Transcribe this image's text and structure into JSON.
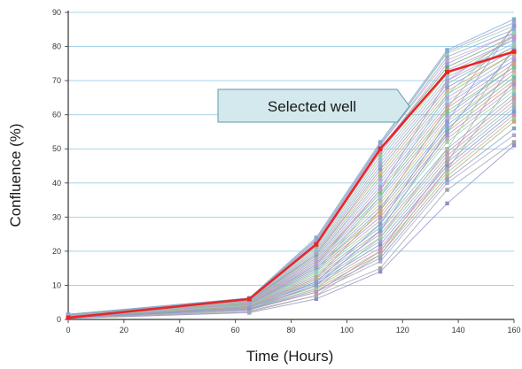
{
  "chart_data": {
    "type": "line",
    "xlabel": "Time (Hours)",
    "ylabel": "Confluence (%)",
    "xlim": [
      0,
      160
    ],
    "ylim": [
      0,
      90
    ],
    "xticks": [
      0,
      20,
      40,
      60,
      80,
      100,
      120,
      140,
      160
    ],
    "yticks": [
      0,
      10,
      20,
      30,
      40,
      50,
      60,
      70,
      80,
      90
    ],
    "x": [
      0,
      65,
      89,
      112,
      136,
      160
    ],
    "grid": "horizontal",
    "highlight_series": {
      "label": "Selected well",
      "color": "#e8262b",
      "values": [
        0.5,
        6,
        22,
        50,
        72.5,
        78.5
      ]
    },
    "series": [
      {
        "color": "#8e8ec8",
        "values": [
          0.3,
          2,
          6,
          14,
          34,
          51
        ]
      },
      {
        "color": "#9aa3a8",
        "values": [
          0.4,
          2.5,
          7,
          15,
          38,
          52
        ]
      },
      {
        "color": "#b3a2c8",
        "values": [
          0.5,
          3,
          8,
          17,
          40,
          54
        ]
      },
      {
        "color": "#7ca6c9",
        "values": [
          0.5,
          3,
          8.5,
          18,
          41,
          56
        ]
      },
      {
        "color": "#c7a37a",
        "values": [
          0.6,
          3.2,
          9,
          19,
          42,
          58
        ]
      },
      {
        "color": "#9bc89b",
        "values": [
          0.6,
          3.5,
          9.5,
          20,
          43,
          59
        ]
      },
      {
        "color": "#d08db3",
        "values": [
          0.7,
          3.6,
          10,
          21,
          44,
          60
        ]
      },
      {
        "color": "#6f9fbf",
        "values": [
          0.7,
          3.8,
          10.5,
          22,
          45,
          61
        ]
      },
      {
        "color": "#a0a0d8",
        "values": [
          0.8,
          4,
          11,
          23,
          46,
          62
        ]
      },
      {
        "color": "#8fbf8f",
        "values": [
          0.8,
          4,
          11.5,
          24,
          47,
          63
        ]
      },
      {
        "color": "#bca0d0",
        "values": [
          0.8,
          4.2,
          12,
          25,
          48,
          64
        ]
      },
      {
        "color": "#c49a9a",
        "values": [
          0.9,
          4.2,
          12.5,
          26,
          49,
          65
        ]
      },
      {
        "color": "#7fb3d5",
        "values": [
          0.9,
          4.3,
          13,
          27,
          50,
          66
        ]
      },
      {
        "color": "#9ed09e",
        "values": [
          0.9,
          4.4,
          13.5,
          28,
          52,
          67
        ]
      },
      {
        "color": "#b0b0b0",
        "values": [
          1,
          4.5,
          14,
          29,
          53,
          68
        ]
      },
      {
        "color": "#a88fc9",
        "values": [
          1,
          4.5,
          14.5,
          30,
          54,
          69
        ]
      },
      {
        "color": "#d4a46a",
        "values": [
          1,
          4.6,
          15,
          31,
          55,
          70
        ]
      },
      {
        "color": "#6fb6b6",
        "values": [
          1,
          4.7,
          15,
          32,
          56,
          71
        ]
      },
      {
        "color": "#9b9bd4",
        "values": [
          1,
          4.8,
          15.5,
          33,
          57,
          72
        ]
      },
      {
        "color": "#b8d08a",
        "values": [
          1,
          4.8,
          16,
          34,
          58,
          72
        ]
      },
      {
        "color": "#c9a3c9",
        "values": [
          1,
          4.9,
          16,
          35,
          59,
          73
        ]
      },
      {
        "color": "#8aa8d8",
        "values": [
          1.1,
          5,
          16.5,
          36,
          60,
          74
        ]
      },
      {
        "color": "#7ec27e",
        "values": [
          1.1,
          5,
          17,
          37,
          61,
          74
        ]
      },
      {
        "color": "#d09a9a",
        "values": [
          1.1,
          5.1,
          17,
          38,
          62,
          75
        ]
      },
      {
        "color": "#a4a4e0",
        "values": [
          1.1,
          5.2,
          17.5,
          39,
          63,
          76
        ]
      },
      {
        "color": "#9fc5d9",
        "values": [
          1.2,
          5.2,
          18,
          40,
          64,
          76
        ]
      },
      {
        "color": "#b9a0e0",
        "values": [
          1.2,
          5.3,
          18,
          41,
          65,
          77
        ]
      },
      {
        "color": "#88c488",
        "values": [
          1.2,
          5.4,
          18.5,
          42,
          66,
          78
        ]
      },
      {
        "color": "#d6b27a",
        "values": [
          1.2,
          5.4,
          19,
          43,
          67,
          78
        ]
      },
      {
        "color": "#9b8fd0",
        "values": [
          1.3,
          5.5,
          19,
          44,
          68,
          79
        ]
      },
      {
        "color": "#7fb7b7",
        "values": [
          1.3,
          5.5,
          19.5,
          45,
          69,
          80
        ]
      },
      {
        "color": "#c0a0c0",
        "values": [
          1.3,
          5.6,
          20,
          46,
          70,
          80
        ]
      },
      {
        "color": "#8cbfe0",
        "values": [
          1.3,
          5.6,
          20.5,
          47,
          71,
          81
        ]
      },
      {
        "color": "#a0c880",
        "values": [
          1.4,
          5.7,
          21,
          48,
          72,
          82
        ]
      },
      {
        "color": "#b49ad8",
        "values": [
          1.4,
          5.8,
          21.5,
          49,
          73,
          82
        ]
      },
      {
        "color": "#6aa86a",
        "values": [
          1.4,
          5.8,
          22,
          50,
          74,
          83
        ]
      },
      {
        "color": "#9c9ce6",
        "values": [
          1.4,
          5.9,
          22.5,
          50,
          75,
          84
        ]
      },
      {
        "color": "#d29fb8",
        "values": [
          1.5,
          6,
          23,
          51,
          76,
          84
        ]
      },
      {
        "color": "#84b0d8",
        "values": [
          1.5,
          6,
          23,
          51,
          77,
          85
        ]
      },
      {
        "color": "#9fd19f",
        "values": [
          1.5,
          6.1,
          23.5,
          51.5,
          78,
          86
        ]
      },
      {
        "color": "#a7a0d0",
        "values": [
          1.5,
          6.2,
          23.5,
          51.5,
          78.5,
          87
        ]
      },
      {
        "color": "#7aaed0",
        "values": [
          1.5,
          6.3,
          24,
          52,
          79,
          88
        ]
      },
      {
        "color": "#c5a57c",
        "values": [
          0.8,
          3.8,
          12,
          32,
          62,
          86
        ]
      },
      {
        "color": "#8fd0c0",
        "values": [
          0.9,
          4.1,
          14,
          36,
          66,
          84
        ]
      },
      {
        "color": "#b59ccc",
        "values": [
          1,
          4.4,
          16,
          38,
          70,
          83
        ]
      },
      {
        "color": "#8a9bd6",
        "values": [
          0.7,
          3.4,
          11,
          28,
          58,
          86
        ]
      },
      {
        "color": "#a1c1a1",
        "values": [
          0.6,
          3.1,
          9,
          24,
          50,
          80
        ]
      },
      {
        "color": "#c28fb0",
        "values": [
          0.5,
          2.8,
          8,
          20,
          46,
          76
        ]
      },
      {
        "color": "#7d9fc8",
        "values": [
          0.6,
          3,
          10,
          26,
          55,
          79
        ]
      },
      {
        "color": "#a8a8a8",
        "values": [
          0.4,
          2.2,
          7,
          19,
          44,
          70
        ]
      }
    ]
  }
}
